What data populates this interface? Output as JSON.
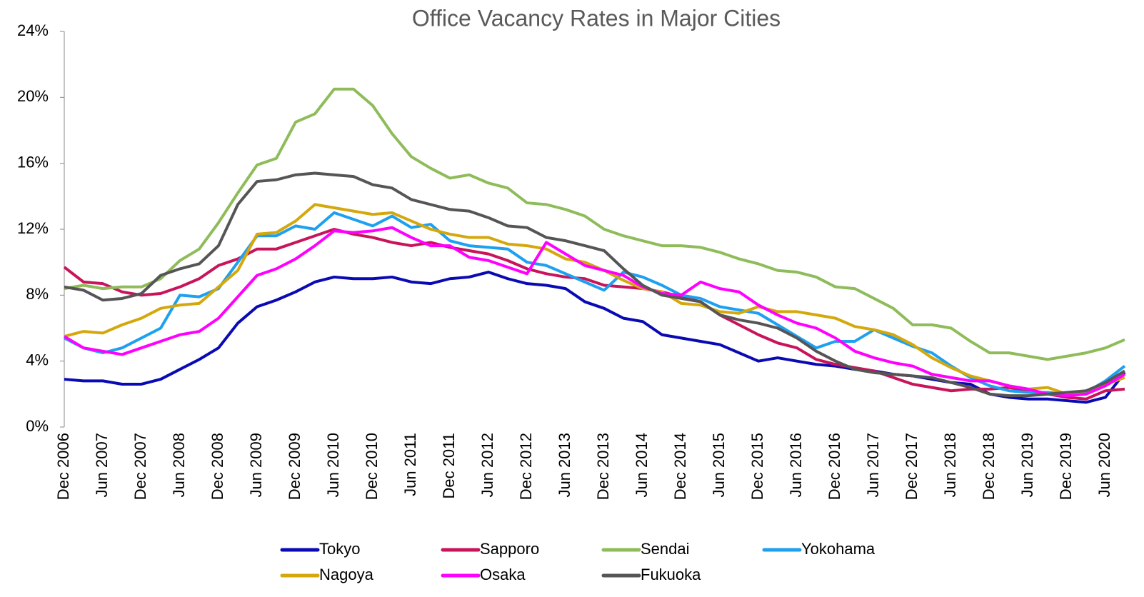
{
  "chart_data": {
    "type": "line",
    "title": "Office Vacancy Rates in Major Cities",
    "categories": [
      "Dec 2006",
      null,
      "Jun 2007",
      null,
      "Dec 2007",
      null,
      "Jun 2008",
      null,
      "Dec 2008",
      null,
      "Jun 2009",
      null,
      "Dec 2009",
      null,
      "Jun 2010",
      null,
      "Dec 2010",
      null,
      "Jun 2011",
      null,
      "Dec 2011",
      null,
      "Jun 2012",
      null,
      "Dec 2012",
      null,
      "Jun 2013",
      null,
      "Dec 2013",
      null,
      "Jun 2014",
      null,
      "Dec 2014",
      null,
      "Jun 2015",
      null,
      "Dec 2015",
      null,
      "Jun 2016",
      null,
      "Dec 2016",
      null,
      "Jun 2017",
      null,
      "Dec 2017",
      null,
      "Jun 2018",
      null,
      "Dec 2018",
      null,
      "Jun 2019",
      null,
      "Dec 2019",
      null,
      "Jun 2020",
      null
    ],
    "series": [
      {
        "name": "Tokyo",
        "color": "#0a0ab4",
        "values": [
          2.9,
          2.8,
          2.8,
          2.6,
          2.6,
          2.9,
          3.5,
          4.1,
          4.8,
          6.3,
          7.3,
          7.7,
          8.2,
          8.8,
          9.1,
          9.0,
          9.0,
          9.1,
          8.8,
          8.7,
          9.0,
          9.1,
          9.4,
          9.0,
          8.7,
          8.6,
          8.4,
          7.6,
          7.2,
          6.6,
          6.4,
          5.6,
          5.4,
          5.2,
          5.0,
          4.5,
          4.0,
          4.2,
          4.0,
          3.8,
          3.7,
          3.5,
          3.4,
          3.2,
          3.1,
          2.9,
          2.7,
          2.6,
          2.0,
          1.8,
          1.7,
          1.7,
          1.6,
          1.5,
          1.8,
          3.3
        ]
      },
      {
        "name": "Sapporo",
        "color": "#c8145a",
        "values": [
          9.7,
          8.8,
          8.7,
          8.2,
          8.0,
          8.1,
          8.5,
          9.0,
          9.8,
          10.2,
          10.8,
          10.8,
          11.2,
          11.6,
          12.0,
          11.7,
          11.5,
          11.2,
          11.0,
          11.2,
          10.9,
          10.7,
          10.5,
          10.1,
          9.6,
          9.3,
          9.1,
          9.0,
          8.6,
          8.5,
          8.4,
          8.2,
          7.9,
          7.6,
          6.8,
          6.2,
          5.6,
          5.1,
          4.8,
          4.1,
          3.8,
          3.6,
          3.4,
          3.0,
          2.6,
          2.4,
          2.2,
          2.3,
          2.3,
          2.4,
          2.2,
          2.0,
          1.8,
          1.7,
          2.2,
          2.3
        ]
      },
      {
        "name": "Sendai",
        "color": "#8fbc5a",
        "values": [
          8.4,
          8.6,
          8.4,
          8.5,
          8.5,
          9.0,
          10.1,
          10.8,
          12.4,
          14.2,
          15.9,
          16.3,
          18.5,
          19.0,
          20.5,
          20.5,
          19.5,
          17.8,
          16.4,
          15.7,
          15.1,
          15.3,
          14.8,
          14.5,
          13.6,
          13.5,
          13.2,
          12.8,
          12.0,
          11.6,
          11.3,
          11.0,
          11.0,
          10.9,
          10.6,
          10.2,
          9.9,
          9.5,
          9.4,
          9.1,
          8.5,
          8.4,
          7.8,
          7.2,
          6.2,
          6.2,
          6.0,
          5.2,
          4.5,
          4.5,
          4.3,
          4.1,
          4.3,
          4.5,
          4.8,
          5.3
        ]
      },
      {
        "name": "Yokohama",
        "color": "#1ea0f0",
        "values": [
          5.4,
          4.8,
          4.5,
          4.8,
          5.4,
          6.0,
          8.0,
          7.9,
          8.4,
          10.0,
          11.6,
          11.6,
          12.2,
          12.0,
          13.0,
          12.6,
          12.2,
          12.8,
          12.1,
          12.3,
          11.3,
          11.0,
          10.9,
          10.8,
          10.0,
          9.8,
          9.3,
          8.8,
          8.3,
          9.4,
          9.1,
          8.6,
          8.0,
          7.8,
          7.3,
          7.1,
          6.9,
          6.2,
          5.5,
          4.8,
          5.2,
          5.2,
          5.9,
          5.4,
          4.9,
          4.5,
          3.7,
          3.0,
          2.5,
          2.2,
          2.1,
          2.1,
          2.0,
          2.1,
          2.8,
          3.7
        ]
      },
      {
        "name": "Nagoya",
        "color": "#d4a80c",
        "values": [
          5.5,
          5.8,
          5.7,
          6.2,
          6.6,
          7.2,
          7.4,
          7.5,
          8.5,
          9.5,
          11.7,
          11.8,
          12.5,
          13.5,
          13.3,
          13.1,
          12.9,
          13.0,
          12.5,
          12.0,
          11.7,
          11.5,
          11.5,
          11.1,
          11.0,
          10.8,
          10.2,
          10.0,
          9.5,
          8.9,
          8.4,
          8.2,
          7.5,
          7.4,
          7.0,
          6.9,
          7.3,
          7.0,
          7.0,
          6.8,
          6.6,
          6.1,
          5.9,
          5.6,
          5.0,
          4.2,
          3.6,
          3.1,
          2.8,
          2.5,
          2.3,
          2.4,
          2.0,
          2.2,
          2.6,
          3.0
        ]
      },
      {
        "name": "Osaka",
        "color": "#ff00ff",
        "values": [
          5.5,
          4.8,
          4.6,
          4.4,
          4.8,
          5.2,
          5.6,
          5.8,
          6.6,
          7.9,
          9.2,
          9.6,
          10.2,
          11.0,
          11.9,
          11.8,
          11.9,
          12.1,
          11.5,
          11.0,
          11.0,
          10.3,
          10.1,
          9.7,
          9.3,
          11.2,
          10.5,
          9.8,
          9.5,
          9.2,
          8.5,
          8.1,
          8.0,
          8.8,
          8.4,
          8.2,
          7.4,
          6.8,
          6.3,
          6.0,
          5.4,
          4.6,
          4.2,
          3.9,
          3.7,
          3.2,
          3.0,
          2.8,
          2.8,
          2.5,
          2.3,
          2.0,
          1.9,
          2.0,
          2.5,
          3.2
        ]
      },
      {
        "name": "Fukuoka",
        "color": "#555555",
        "values": [
          8.5,
          8.3,
          7.7,
          7.8,
          8.1,
          9.2,
          9.6,
          9.9,
          11.0,
          13.5,
          14.9,
          15.0,
          15.3,
          15.4,
          15.3,
          15.2,
          14.7,
          14.5,
          13.8,
          13.5,
          13.2,
          13.1,
          12.7,
          12.2,
          12.1,
          11.5,
          11.3,
          11.0,
          10.7,
          9.6,
          8.6,
          8.0,
          7.8,
          7.6,
          6.8,
          6.5,
          6.3,
          6.0,
          5.4,
          4.6,
          4.0,
          3.5,
          3.3,
          3.2,
          3.1,
          3.0,
          2.7,
          2.4,
          2.0,
          1.9,
          1.9,
          2.0,
          2.1,
          2.2,
          2.7,
          3.4
        ]
      }
    ],
    "ylim": [
      0,
      24
    ],
    "yticks": [
      {
        "value": 0,
        "label": "0%"
      },
      {
        "value": 4,
        "label": "4%"
      },
      {
        "value": 8,
        "label": "8%"
      },
      {
        "value": 12,
        "label": "12%"
      },
      {
        "value": 16,
        "label": "16%"
      },
      {
        "value": 20,
        "label": "20%"
      },
      {
        "value": 24,
        "label": "24%"
      }
    ],
    "grid": false,
    "legend": "bottom"
  }
}
